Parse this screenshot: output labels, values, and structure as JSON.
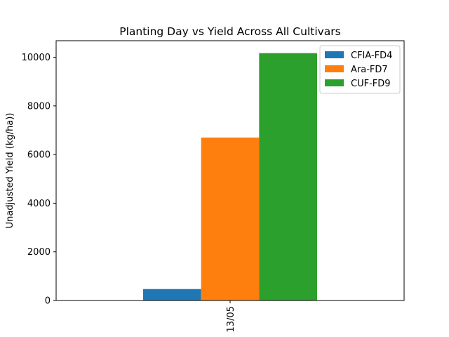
{
  "chart_data": {
    "type": "bar",
    "title": "Planting Day vs Yield Across All Cultivars",
    "xlabel": "",
    "ylabel": "Unadjusted Yield (kg/ha))",
    "categories": [
      "13/05"
    ],
    "series": [
      {
        "name": "CFIA-FD4",
        "color": "#1f77b4",
        "values": [
          470
        ]
      },
      {
        "name": "Ara-FD7",
        "color": "#ff7f0e",
        "values": [
          6700
        ]
      },
      {
        "name": "CUF-FD9",
        "color": "#2ca02c",
        "values": [
          10170
        ]
      }
    ],
    "ylim": [
      0,
      10680
    ],
    "yticks": [
      0,
      2000,
      4000,
      6000,
      8000,
      10000
    ],
    "grid": false,
    "legend_position": "top-right"
  }
}
